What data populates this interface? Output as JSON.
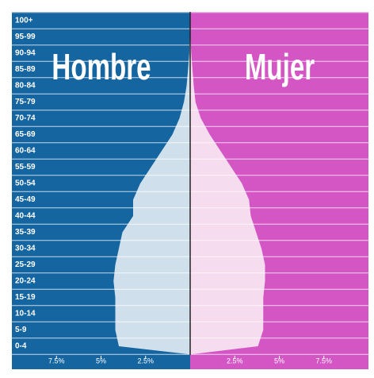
{
  "chart_data": {
    "type": "population-pyramid",
    "categories": [
      "0-4",
      "5-9",
      "10-14",
      "15-19",
      "20-24",
      "25-29",
      "30-34",
      "35-39",
      "40-44",
      "45-49",
      "50-54",
      "55-59",
      "60-64",
      "65-69",
      "70-74",
      "75-79",
      "80-84",
      "85-89",
      "90-94",
      "95-99",
      "100+"
    ],
    "series": [
      {
        "name": "Hombre",
        "color": "#1565a0",
        "fill": "#cfe0ec",
        "side": "left",
        "values": [
          4.0,
          4.2,
          4.2,
          4.2,
          4.3,
          4.2,
          4.0,
          3.8,
          3.2,
          3.2,
          2.8,
          2.2,
          1.6,
          1.0,
          0.6,
          0.35,
          0.2,
          0.12,
          0.05,
          0.02,
          0.01
        ]
      },
      {
        "name": "Mujer",
        "color": "#d455c4",
        "fill": "#f6dcef",
        "side": "right",
        "values": [
          3.8,
          4.1,
          4.1,
          4.1,
          4.2,
          4.2,
          4.0,
          3.7,
          3.4,
          3.3,
          2.9,
          2.3,
          1.7,
          1.1,
          0.6,
          0.3,
          0.2,
          0.13,
          0.06,
          0.02,
          0.01
        ]
      }
    ],
    "xlim": [
      -10,
      10
    ],
    "xticks": [
      {
        "value": -7.5,
        "label": "7.5%"
      },
      {
        "value": -5,
        "label": "5%"
      },
      {
        "value": -2.5,
        "label": "2.5%"
      },
      {
        "value": 2.5,
        "label": "2.5%"
      },
      {
        "value": 5,
        "label": "5%"
      },
      {
        "value": 7.5,
        "label": "7.5%"
      }
    ],
    "grid": true
  }
}
